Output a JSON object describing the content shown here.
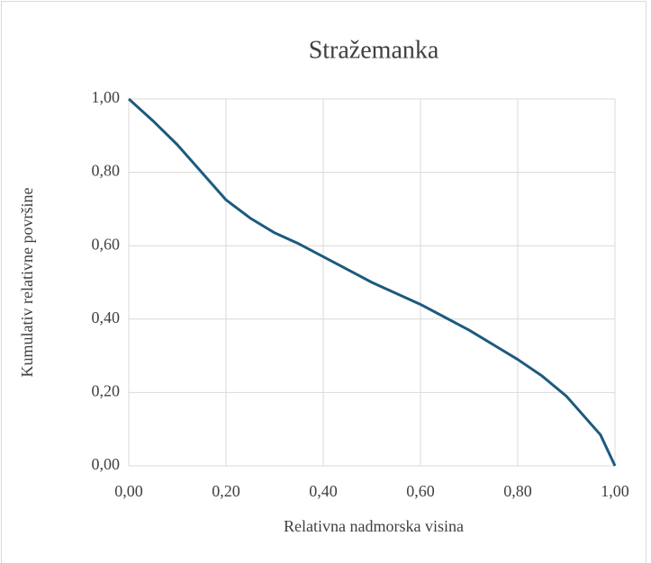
{
  "chart_data": {
    "type": "line",
    "title": "Stražemanka",
    "x_label": "Relativna nadmorska visina",
    "y_label": "Kumulativ relativne površine",
    "x": [
      0,
      0.05,
      0.1,
      0.15,
      0.2,
      0.25,
      0.3,
      0.35,
      0.4,
      0.45,
      0.5,
      0.55,
      0.6,
      0.65,
      0.7,
      0.75,
      0.8,
      0.85,
      0.9,
      0.95,
      0.97,
      1
    ],
    "series": [
      {
        "color": "#1d5a7e",
        "values": [
          1,
          0.94,
          0.875,
          0.8,
          0.725,
          0.675,
          0.635,
          0.605,
          0.57,
          0.535,
          0.5,
          0.47,
          0.44,
          0.405,
          0.37,
          0.33,
          0.29,
          0.245,
          0.19,
          0.115,
          0.085,
          0
        ]
      }
    ],
    "xlim": [
      0,
      1
    ],
    "ylim": [
      0,
      1
    ],
    "xticks": [
      {
        "value": 0,
        "label": "0,00"
      },
      {
        "value": 0.2,
        "label": "0,20"
      },
      {
        "value": 0.4,
        "label": "0,40"
      },
      {
        "value": 0.6,
        "label": "0,60"
      },
      {
        "value": 0.8,
        "label": "0,80"
      },
      {
        "value": 1,
        "label": "1,00"
      }
    ],
    "yticks": [
      {
        "value": 0,
        "label": "0,00"
      },
      {
        "value": 0.2,
        "label": "0,20"
      },
      {
        "value": 0.4,
        "label": "0,40"
      },
      {
        "value": 0.6,
        "label": "0,60"
      },
      {
        "value": 0.8,
        "label": "0,80"
      },
      {
        "value": 1,
        "label": "1,00"
      }
    ],
    "grid": true
  }
}
